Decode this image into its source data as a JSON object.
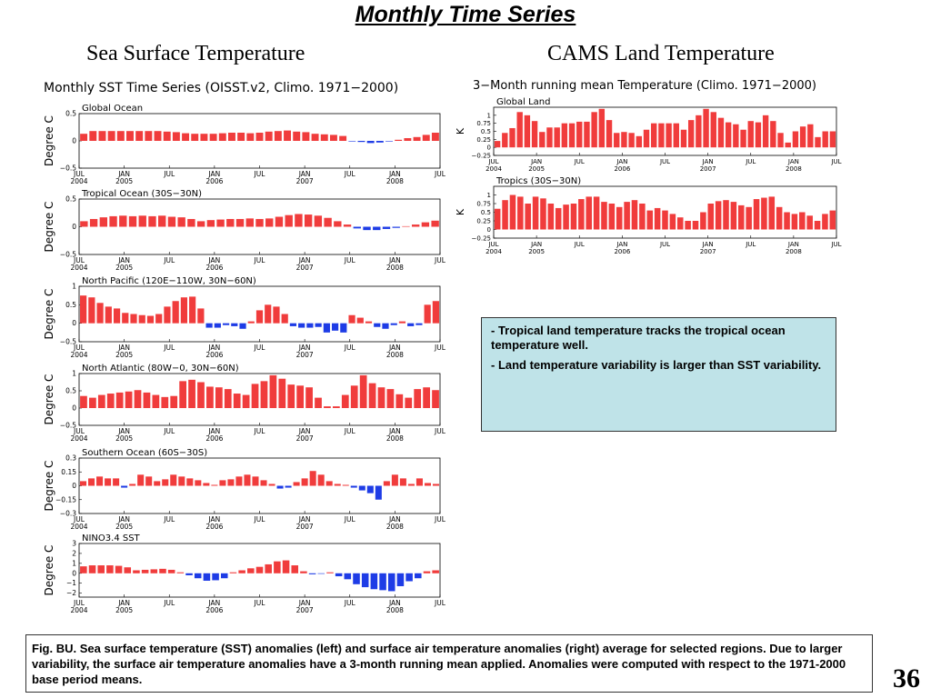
{
  "slide": {
    "title": "Monthly Time Series",
    "left_title": "Sea Surface Temperature",
    "right_title": "CAMS Land Temperature",
    "left_panel_header": "Monthly SST Time Series (OISST.v2, Climo. 1971−2000)",
    "right_panel_header": "3−Month running mean Temperature (Climo. 1971−2000)",
    "notes": [
      "- Tropical land temperature tracks the tropical ocean temperature well.",
      "- Land temperature variability is larger than SST variability."
    ],
    "caption": "Fig. BU. Sea surface temperature (SST) anomalies (left) and surface air temperature anomalies (right) average for selected regions.  Due to larger variability, the surface air temperature anomalies have a 3-month running mean applied.  Anomalies were computed with respect to the 1971-2000 base period means.",
    "page_number": "36"
  },
  "colors": {
    "positive": "#f03c3c",
    "negative": "#1e3ce6"
  },
  "chart_data": [
    {
      "type": "bar",
      "id": "sst-global",
      "title": "Global Ocean",
      "ylabel": "Degree C",
      "ylim": [
        -0.5,
        0.5
      ],
      "yticks": [
        "0.5",
        "0",
        "−0.5"
      ],
      "ytick_values": [
        0.5,
        0,
        -0.5
      ],
      "x_ticks": [
        [
          "JUL",
          "2004"
        ],
        [
          "JAN",
          "2005"
        ],
        [
          "JUL",
          ""
        ],
        [
          "JAN",
          "2006"
        ],
        [
          "JUL",
          ""
        ],
        [
          "JAN",
          "2007"
        ],
        [
          "JUL",
          ""
        ],
        [
          "JAN",
          "2008"
        ],
        [
          "JUL",
          ""
        ]
      ],
      "values": [
        0.13,
        0.18,
        0.18,
        0.18,
        0.18,
        0.18,
        0.18,
        0.18,
        0.18,
        0.17,
        0.16,
        0.14,
        0.13,
        0.13,
        0.13,
        0.14,
        0.15,
        0.15,
        0.14,
        0.15,
        0.17,
        0.18,
        0.19,
        0.17,
        0.16,
        0.13,
        0.12,
        0.11,
        0.09,
        -0.01,
        -0.02,
        -0.04,
        -0.03,
        -0.01,
        0.02,
        0.05,
        0.07,
        0.11,
        0.15
      ]
    },
    {
      "type": "bar",
      "id": "sst-tropical",
      "title": "Tropical Ocean (30S−30N)",
      "ylabel": "Degree C",
      "ylim": [
        -0.5,
        0.5
      ],
      "yticks": [
        "0.5",
        "0",
        "−0.5"
      ],
      "ytick_values": [
        0.5,
        0,
        -0.5
      ],
      "x_ticks": [
        [
          "JUL",
          "2004"
        ],
        [
          "JAN",
          "2005"
        ],
        [
          "JUL",
          ""
        ],
        [
          "JAN",
          "2006"
        ],
        [
          "JUL",
          ""
        ],
        [
          "JAN",
          "2007"
        ],
        [
          "JUL",
          ""
        ],
        [
          "JAN",
          "2008"
        ],
        [
          "JUL",
          ""
        ]
      ],
      "values": [
        0.1,
        0.14,
        0.17,
        0.19,
        0.2,
        0.19,
        0.2,
        0.19,
        0.2,
        0.18,
        0.17,
        0.14,
        0.1,
        0.12,
        0.13,
        0.14,
        0.14,
        0.15,
        0.14,
        0.15,
        0.18,
        0.21,
        0.23,
        0.22,
        0.2,
        0.16,
        0.1,
        0.04,
        -0.03,
        -0.06,
        -0.06,
        -0.04,
        -0.02,
        0.01,
        0.04,
        0.08,
        0.11
      ]
    },
    {
      "type": "bar",
      "id": "sst-npacific",
      "title": "North Pacific (120E−110W, 30N−60N)",
      "ylabel": "Degree C",
      "ylim": [
        -0.5,
        1
      ],
      "yticks": [
        "1",
        "0.5",
        "0",
        "−0.5"
      ],
      "ytick_values": [
        1,
        0.5,
        0,
        -0.5
      ],
      "x_ticks": [
        [
          "JUL",
          "2004"
        ],
        [
          "JAN",
          "2005"
        ],
        [
          "JUL",
          ""
        ],
        [
          "JAN",
          "2006"
        ],
        [
          "JUL",
          ""
        ],
        [
          "JAN",
          "2007"
        ],
        [
          "JUL",
          ""
        ],
        [
          "JAN",
          "2008"
        ],
        [
          "JUL",
          ""
        ]
      ],
      "values": [
        0.75,
        0.7,
        0.55,
        0.45,
        0.4,
        0.28,
        0.25,
        0.22,
        0.2,
        0.25,
        0.45,
        0.6,
        0.7,
        0.72,
        0.4,
        -0.12,
        -0.12,
        -0.05,
        -0.08,
        -0.15,
        0.05,
        0.35,
        0.5,
        0.45,
        0.25,
        -0.08,
        -0.12,
        -0.12,
        -0.1,
        -0.25,
        -0.2,
        -0.25,
        0.22,
        0.15,
        0.05,
        -0.1,
        -0.15,
        -0.05,
        0.05,
        -0.08,
        -0.05,
        0.5,
        0.6
      ]
    },
    {
      "type": "bar",
      "id": "sst-natlantic",
      "title": "North Atlantic (80W−0, 30N−60N)",
      "ylabel": "Degree C",
      "ylim": [
        -0.5,
        1
      ],
      "yticks": [
        "1",
        "0.5",
        "0",
        "−0.5"
      ],
      "ytick_values": [
        1,
        0.5,
        0,
        -0.5
      ],
      "x_ticks": [
        [
          "JUL",
          "2004"
        ],
        [
          "JAN",
          "2005"
        ],
        [
          "JUL",
          ""
        ],
        [
          "JAN",
          "2006"
        ],
        [
          "JUL",
          ""
        ],
        [
          "JAN",
          "2007"
        ],
        [
          "JUL",
          ""
        ],
        [
          "JAN",
          "2008"
        ],
        [
          "JUL",
          ""
        ]
      ],
      "values": [
        0.35,
        0.3,
        0.38,
        0.42,
        0.45,
        0.48,
        0.52,
        0.45,
        0.38,
        0.32,
        0.35,
        0.78,
        0.82,
        0.75,
        0.62,
        0.6,
        0.55,
        0.42,
        0.38,
        0.7,
        0.78,
        0.95,
        0.85,
        0.68,
        0.65,
        0.6,
        0.3,
        0.05,
        0.05,
        0.38,
        0.65,
        0.95,
        0.72,
        0.6,
        0.55,
        0.4,
        0.3,
        0.55,
        0.6,
        0.52
      ]
    },
    {
      "type": "bar",
      "id": "sst-southern",
      "title": "Southern Ocean (60S−30S)",
      "ylabel": "Degree C",
      "ylim": [
        -0.3,
        0.3
      ],
      "yticks": [
        "0.3",
        "0.15",
        "0",
        "−0.15",
        "−0.3"
      ],
      "ytick_values": [
        0.3,
        0.15,
        0,
        -0.15,
        -0.3
      ],
      "x_ticks": [
        [
          "JUL",
          "2004"
        ],
        [
          "JAN",
          "2005"
        ],
        [
          "JUL",
          ""
        ],
        [
          "JAN",
          "2006"
        ],
        [
          "JUL",
          ""
        ],
        [
          "JAN",
          "2007"
        ],
        [
          "JUL",
          ""
        ],
        [
          "JAN",
          "2008"
        ],
        [
          "JUL",
          ""
        ]
      ],
      "values": [
        0.05,
        0.08,
        0.1,
        0.08,
        0.08,
        -0.02,
        0.02,
        0.12,
        0.1,
        0.05,
        0.07,
        0.12,
        0.1,
        0.08,
        0.06,
        0.03,
        0.01,
        0.06,
        0.07,
        0.1,
        0.12,
        0.1,
        0.06,
        0.02,
        -0.03,
        -0.02,
        0.04,
        0.08,
        0.16,
        0.12,
        0.05,
        0.02,
        0.01,
        -0.02,
        -0.05,
        -0.08,
        -0.15,
        0.05,
        0.12,
        0.08,
        0.02,
        0.08,
        0.03,
        0.02
      ]
    },
    {
      "type": "bar",
      "id": "sst-nino34",
      "title": "NINO3.4 SST",
      "ylabel": "Degree C",
      "ylim": [
        -2.4,
        3
      ],
      "yticks": [
        "3",
        "2",
        "1",
        "0",
        "−1",
        "−2"
      ],
      "ytick_values": [
        3,
        2,
        1,
        0,
        -1,
        -2
      ],
      "x_ticks": [
        [
          "JUL",
          "2004"
        ],
        [
          "JAN",
          "2005"
        ],
        [
          "JUL",
          ""
        ],
        [
          "JAN",
          "2006"
        ],
        [
          "JUL",
          ""
        ],
        [
          "JAN",
          "2007"
        ],
        [
          "JUL",
          ""
        ],
        [
          "JAN",
          "2008"
        ],
        [
          "JUL",
          ""
        ]
      ],
      "values": [
        0.7,
        0.8,
        0.8,
        0.8,
        0.75,
        0.6,
        0.3,
        0.35,
        0.4,
        0.45,
        0.35,
        0.1,
        -0.2,
        -0.5,
        -0.75,
        -0.7,
        -0.5,
        0.1,
        0.3,
        0.5,
        0.65,
        0.9,
        1.2,
        1.3,
        0.8,
        0.2,
        -0.1,
        -0.05,
        0.1,
        -0.3,
        -0.6,
        -1.1,
        -1.4,
        -1.6,
        -1.7,
        -1.8,
        -1.3,
        -0.8,
        -0.5,
        0.2,
        0.3
      ]
    },
    {
      "type": "bar",
      "id": "cams-global-land",
      "title": "Global Land",
      "ylabel": "K",
      "ylim": [
        -0.25,
        1.25
      ],
      "yticks": [
        "1",
        "0.75",
        "0.5",
        "0.25",
        "0",
        "−0.25"
      ],
      "ytick_values": [
        1,
        0.75,
        0.5,
        0.25,
        0,
        -0.25
      ],
      "x_ticks": [
        [
          "JUL",
          "2004"
        ],
        [
          "JAN",
          "2005"
        ],
        [
          "JUL",
          ""
        ],
        [
          "JAN",
          "2006"
        ],
        [
          "JUL",
          ""
        ],
        [
          "JAN",
          "2007"
        ],
        [
          "JUL",
          ""
        ],
        [
          "JAN",
          "2008"
        ],
        [
          "JUL",
          ""
        ]
      ],
      "values": [
        0.2,
        0.45,
        0.6,
        1.1,
        1.0,
        0.82,
        0.48,
        0.62,
        0.62,
        0.75,
        0.75,
        0.8,
        0.8,
        1.1,
        1.2,
        0.85,
        0.45,
        0.48,
        0.45,
        0.35,
        0.55,
        0.75,
        0.75,
        0.75,
        0.75,
        0.55,
        0.85,
        1.0,
        1.2,
        1.1,
        0.92,
        0.78,
        0.72,
        0.55,
        0.82,
        0.78,
        1.0,
        0.82,
        0.45,
        0.15,
        0.5,
        0.65,
        0.72,
        0.32,
        0.5,
        0.5
      ]
    },
    {
      "type": "bar",
      "id": "cams-tropics",
      "title": "Tropics (30S−30N)",
      "ylabel": "K",
      "ylim": [
        -0.25,
        1.25
      ],
      "yticks": [
        "1",
        "0.75",
        "0.5",
        "0.25",
        "0",
        "−0.25"
      ],
      "ytick_values": [
        1,
        0.75,
        0.5,
        0.25,
        0,
        -0.25
      ],
      "x_ticks": [
        [
          "JUL",
          "2004"
        ],
        [
          "JAN",
          "2005"
        ],
        [
          "JUL",
          ""
        ],
        [
          "JAN",
          "2006"
        ],
        [
          "JUL",
          ""
        ],
        [
          "JAN",
          "2007"
        ],
        [
          "JUL",
          ""
        ],
        [
          "JAN",
          "2008"
        ],
        [
          "JUL",
          ""
        ]
      ],
      "values": [
        0.6,
        0.85,
        1.0,
        0.95,
        0.75,
        0.95,
        0.9,
        0.75,
        0.62,
        0.72,
        0.75,
        0.88,
        0.95,
        0.95,
        0.8,
        0.75,
        0.65,
        0.8,
        0.85,
        0.75,
        0.55,
        0.62,
        0.55,
        0.45,
        0.35,
        0.25,
        0.25,
        0.5,
        0.75,
        0.82,
        0.85,
        0.8,
        0.7,
        0.65,
        0.88,
        0.92,
        0.95,
        0.65,
        0.5,
        0.45,
        0.5,
        0.4,
        0.25,
        0.45,
        0.55
      ]
    }
  ]
}
